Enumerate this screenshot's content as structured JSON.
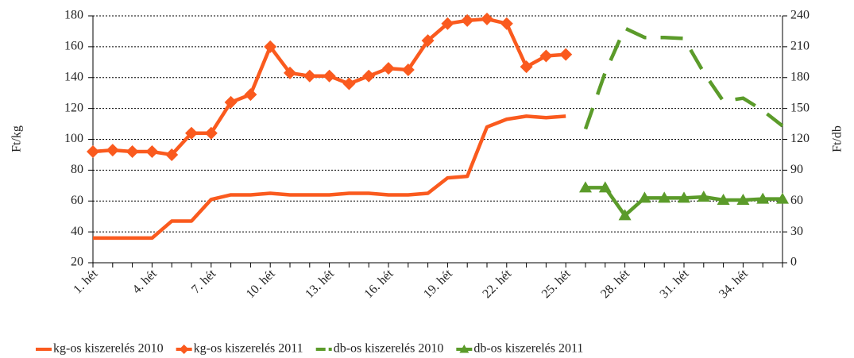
{
  "chart_data": {
    "type": "line",
    "categories": [
      "1. hét",
      null,
      null,
      "4. hét",
      null,
      null,
      "7. hét",
      null,
      null,
      "10. hét",
      null,
      null,
      "13. hét",
      null,
      null,
      "16. hét",
      null,
      null,
      "19. hét",
      null,
      null,
      "22. hét",
      null,
      null,
      "25. hét",
      null,
      null,
      "28. hét",
      null,
      null,
      "31. hét",
      null,
      null,
      "34. hét",
      null,
      null
    ],
    "ylabel": "Ft/kg",
    "y2label": "Ft/db",
    "ylim": [
      20,
      180
    ],
    "yticks": [
      20,
      40,
      60,
      80,
      100,
      120,
      140,
      160,
      180
    ],
    "y2lim": [
      0,
      240
    ],
    "y2ticks": [
      0,
      30,
      60,
      90,
      120,
      150,
      180,
      210,
      240
    ],
    "grid": true,
    "legend": "bottom",
    "series": [
      {
        "name": "kg-os kiszerelés 2010",
        "color": "#fa5a1e",
        "dash": false,
        "marker": "none",
        "values": [
          36,
          36,
          36,
          36,
          47,
          47,
          61,
          64,
          64,
          65,
          64,
          64,
          64,
          65,
          65,
          64,
          64,
          65,
          75,
          76,
          108,
          113,
          115,
          114,
          115,
          null,
          null,
          null,
          null,
          null,
          null,
          null,
          null,
          null,
          null,
          null
        ]
      },
      {
        "name": "kg-os kiszerelés 2011",
        "color": "#fa5a1e",
        "dash": false,
        "marker": "diamond",
        "values": [
          92,
          93,
          92,
          92,
          90,
          104,
          104,
          124,
          129,
          160,
          143,
          141,
          141,
          136,
          141,
          146,
          145,
          164,
          175,
          177,
          178,
          175,
          147,
          154,
          155,
          null,
          null,
          null,
          null,
          null,
          null,
          null,
          null,
          null,
          null,
          null
        ]
      },
      {
        "name": "db-os kiszerelés 2010",
        "color": "#5b9b2a",
        "dash": true,
        "marker": "none",
        "axis": "y2",
        "values": [
          null,
          null,
          null,
          null,
          null,
          null,
          null,
          null,
          null,
          null,
          null,
          null,
          null,
          null,
          null,
          null,
          null,
          null,
          null,
          null,
          null,
          null,
          null,
          null,
          null,
          130,
          185,
          228,
          219,
          219,
          218,
          185,
          157,
          160,
          148,
          133
        ]
      },
      {
        "name": "db-os kiszerelés 2011",
        "color": "#5b9b2a",
        "dash": false,
        "marker": "triangle",
        "axis": "y2",
        "values": [
          null,
          null,
          null,
          null,
          null,
          null,
          null,
          null,
          null,
          null,
          null,
          null,
          null,
          null,
          null,
          null,
          null,
          null,
          null,
          null,
          null,
          null,
          null,
          null,
          null,
          73,
          73,
          46,
          63,
          63,
          63,
          64,
          61,
          61,
          62,
          62
        ]
      }
    ]
  }
}
